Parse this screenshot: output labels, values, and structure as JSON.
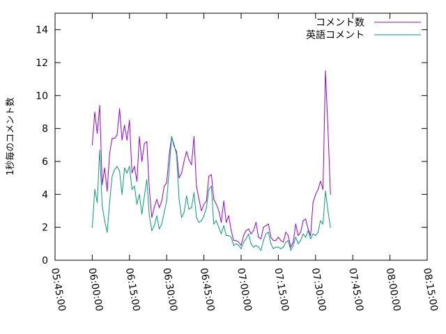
{
  "chart_data": {
    "type": "line",
    "title": "",
    "xlabel": "",
    "ylabel": "1秒毎のコメント数",
    "ylim": [
      0,
      15
    ],
    "xlim": [
      "05:45:00",
      "08:15:00"
    ],
    "grid": false,
    "legend_position": "top-right",
    "y_ticks": [
      "0",
      "2",
      "4",
      "6",
      "8",
      "10",
      "12",
      "14"
    ],
    "x_ticks": [
      "05:45:00",
      "06:00:00",
      "06:15:00",
      "06:30:00",
      "06:45:00",
      "07:00:00",
      "07:15:00",
      "07:30:00",
      "07:45:00",
      "08:00:00",
      "08:15:00"
    ],
    "series": [
      {
        "name": "コメント数",
        "color": "#9400d3",
        "points": [
          [
            "06:00:00",
            7.0
          ],
          [
            "06:01:00",
            9.0
          ],
          [
            "06:02:00",
            7.7
          ],
          [
            "06:03:00",
            9.4
          ],
          [
            "06:04:00",
            4.6
          ],
          [
            "06:05:00",
            5.6
          ],
          [
            "06:06:00",
            4.2
          ],
          [
            "06:07:00",
            6.5
          ],
          [
            "06:08:00",
            7.4
          ],
          [
            "06:09:00",
            7.4
          ],
          [
            "06:10:00",
            7.6
          ],
          [
            "06:11:00",
            9.2
          ],
          [
            "06:12:00",
            7.3
          ],
          [
            "06:13:00",
            8.2
          ],
          [
            "06:14:00",
            7.3
          ],
          [
            "06:15:00",
            8.5
          ],
          [
            "06:16:00",
            5.3
          ],
          [
            "06:17:00",
            5.7
          ],
          [
            "06:18:00",
            4.8
          ],
          [
            "06:19:00",
            7.5
          ],
          [
            "06:20:00",
            6.0
          ],
          [
            "06:21:00",
            7.1
          ],
          [
            "06:22:00",
            7.2
          ],
          [
            "06:23:00",
            4.3
          ],
          [
            "06:24:00",
            2.6
          ],
          [
            "06:25:00",
            3.2
          ],
          [
            "06:26:00",
            3.7
          ],
          [
            "06:27:00",
            3.2
          ],
          [
            "06:28:00",
            3.6
          ],
          [
            "06:29:00",
            4.5
          ],
          [
            "06:30:00",
            4.7
          ],
          [
            "06:31:00",
            6.4
          ],
          [
            "06:32:00",
            7.5
          ],
          [
            "06:33:00",
            6.9
          ],
          [
            "06:34:00",
            6.6
          ],
          [
            "06:35:00",
            5.0
          ],
          [
            "06:36:00",
            5.3
          ],
          [
            "06:37:00",
            6.0
          ],
          [
            "06:38:00",
            6.6
          ],
          [
            "06:39:00",
            6.1
          ],
          [
            "06:40:00",
            5.8
          ],
          [
            "06:41:00",
            7.5
          ],
          [
            "06:42:00",
            4.5
          ],
          [
            "06:43:00",
            3.7
          ],
          [
            "06:44:00",
            3.0
          ],
          [
            "06:45:00",
            3.4
          ],
          [
            "06:46:00",
            3.6
          ],
          [
            "06:47:00",
            5.1
          ],
          [
            "06:48:00",
            5.2
          ],
          [
            "06:49:00",
            3.7
          ],
          [
            "06:50:00",
            3.4
          ],
          [
            "06:51:00",
            3.0
          ],
          [
            "06:52:00",
            2.3
          ],
          [
            "06:53:00",
            3.6
          ],
          [
            "06:54:00",
            2.3
          ],
          [
            "06:55:00",
            2.7
          ],
          [
            "06:56:00",
            1.8
          ],
          [
            "06:57:00",
            1.2
          ],
          [
            "06:58:00",
            1.2
          ],
          [
            "06:59:00",
            1.1
          ],
          [
            "07:00:00",
            0.9
          ],
          [
            "07:01:00",
            1.5
          ],
          [
            "07:02:00",
            1.8
          ],
          [
            "07:03:00",
            1.9
          ],
          [
            "07:04:00",
            1.6
          ],
          [
            "07:05:00",
            1.8
          ],
          [
            "07:06:00",
            2.3
          ],
          [
            "07:07:00",
            1.4
          ],
          [
            "07:08:00",
            1.3
          ],
          [
            "07:09:00",
            2.0
          ],
          [
            "07:10:00",
            2.1
          ],
          [
            "07:11:00",
            2.2
          ],
          [
            "07:12:00",
            1.4
          ],
          [
            "07:13:00",
            1.2
          ],
          [
            "07:14:00",
            1.2
          ],
          [
            "07:15:00",
            1.4
          ],
          [
            "07:16:00",
            1.2
          ],
          [
            "07:17:00",
            1.1
          ],
          [
            "07:18:00",
            1.7
          ],
          [
            "07:19:00",
            1.5
          ],
          [
            "07:20:00",
            0.8
          ],
          [
            "07:21:00",
            1.1
          ],
          [
            "07:22:00",
            2.2
          ],
          [
            "07:23:00",
            1.5
          ],
          [
            "07:24:00",
            1.7
          ],
          [
            "07:25:00",
            2.4
          ],
          [
            "07:26:00",
            2.5
          ],
          [
            "07:27:00",
            1.9
          ],
          [
            "07:28:00",
            1.5
          ],
          [
            "07:29:00",
            3.5
          ],
          [
            "07:30:00",
            4.0
          ],
          [
            "07:31:00",
            4.3
          ],
          [
            "07:32:00",
            4.8
          ],
          [
            "07:33:00",
            4.3
          ],
          [
            "07:34:00",
            11.5
          ],
          [
            "07:35:00",
            8.0
          ],
          [
            "07:36:00",
            4.0
          ]
        ]
      },
      {
        "name": "英語コメント",
        "color": "#009e73",
        "points": [
          [
            "06:00:00",
            2.0
          ],
          [
            "06:01:00",
            4.3
          ],
          [
            "06:02:00",
            3.5
          ],
          [
            "06:03:00",
            6.7
          ],
          [
            "06:04:00",
            3.3
          ],
          [
            "06:05:00",
            2.4
          ],
          [
            "06:06:00",
            1.7
          ],
          [
            "06:07:00",
            3.5
          ],
          [
            "06:08:00",
            5.1
          ],
          [
            "06:09:00",
            5.5
          ],
          [
            "06:10:00",
            5.7
          ],
          [
            "06:11:00",
            5.4
          ],
          [
            "06:12:00",
            4.0
          ],
          [
            "06:13:00",
            5.6
          ],
          [
            "06:14:00",
            5.3
          ],
          [
            "06:15:00",
            5.7
          ],
          [
            "06:16:00",
            4.3
          ],
          [
            "06:17:00",
            4.5
          ],
          [
            "06:18:00",
            3.4
          ],
          [
            "06:19:00",
            4.0
          ],
          [
            "06:20:00",
            2.8
          ],
          [
            "06:21:00",
            3.9
          ],
          [
            "06:22:00",
            4.9
          ],
          [
            "06:23:00",
            2.7
          ],
          [
            "06:24:00",
            1.8
          ],
          [
            "06:25:00",
            2.1
          ],
          [
            "06:26:00",
            2.7
          ],
          [
            "06:27:00",
            1.9
          ],
          [
            "06:28:00",
            2.2
          ],
          [
            "06:29:00",
            2.9
          ],
          [
            "06:30:00",
            3.6
          ],
          [
            "06:31:00",
            5.5
          ],
          [
            "06:32:00",
            7.5
          ],
          [
            "06:33:00",
            7.0
          ],
          [
            "06:34:00",
            6.4
          ],
          [
            "06:35:00",
            3.7
          ],
          [
            "06:36:00",
            2.6
          ],
          [
            "06:37:00",
            2.9
          ],
          [
            "06:38:00",
            3.9
          ],
          [
            "06:39:00",
            3.1
          ],
          [
            "06:40:00",
            3.2
          ],
          [
            "06:41:00",
            4.1
          ],
          [
            "06:42:00",
            2.6
          ],
          [
            "06:43:00",
            2.3
          ],
          [
            "06:44:00",
            2.4
          ],
          [
            "06:45:00",
            2.7
          ],
          [
            "06:46:00",
            3.2
          ],
          [
            "06:47:00",
            4.3
          ],
          [
            "06:48:00",
            4.5
          ],
          [
            "06:49:00",
            2.2
          ],
          [
            "06:50:00",
            2.4
          ],
          [
            "06:51:00",
            2.0
          ],
          [
            "06:52:00",
            1.6
          ],
          [
            "06:53:00",
            2.1
          ],
          [
            "06:54:00",
            1.5
          ],
          [
            "06:55:00",
            1.5
          ],
          [
            "06:56:00",
            1.4
          ],
          [
            "06:57:00",
            0.9
          ],
          [
            "06:58:00",
            1.0
          ],
          [
            "06:59:00",
            0.9
          ],
          [
            "07:00:00",
            0.7
          ],
          [
            "07:01:00",
            1.1
          ],
          [
            "07:02:00",
            1.3
          ],
          [
            "07:03:00",
            1.6
          ],
          [
            "07:04:00",
            1.0
          ],
          [
            "07:05:00",
            0.8
          ],
          [
            "07:06:00",
            0.9
          ],
          [
            "07:07:00",
            0.8
          ],
          [
            "07:08:00",
            0.6
          ],
          [
            "07:09:00",
            1.2
          ],
          [
            "07:10:00",
            1.6
          ],
          [
            "07:11:00",
            1.7
          ],
          [
            "07:12:00",
            1.0
          ],
          [
            "07:13:00",
            0.7
          ],
          [
            "07:14:00",
            0.8
          ],
          [
            "07:15:00",
            0.8
          ],
          [
            "07:16:00",
            0.7
          ],
          [
            "07:17:00",
            0.8
          ],
          [
            "07:18:00",
            1.1
          ],
          [
            "07:19:00",
            1.2
          ],
          [
            "07:20:00",
            0.6
          ],
          [
            "07:21:00",
            0.9
          ],
          [
            "07:22:00",
            1.4
          ],
          [
            "07:23:00",
            1.0
          ],
          [
            "07:24:00",
            1.2
          ],
          [
            "07:25:00",
            1.6
          ],
          [
            "07:26:00",
            1.4
          ],
          [
            "07:27:00",
            1.8
          ],
          [
            "07:28:00",
            1.3
          ],
          [
            "07:29:00",
            1.6
          ],
          [
            "07:30:00",
            1.5
          ],
          [
            "07:31:00",
            1.7
          ],
          [
            "07:32:00",
            2.4
          ],
          [
            "07:33:00",
            2.2
          ],
          [
            "07:34:00",
            4.2
          ],
          [
            "07:35:00",
            3.0
          ],
          [
            "07:36:00",
            2.0
          ]
        ]
      }
    ]
  }
}
